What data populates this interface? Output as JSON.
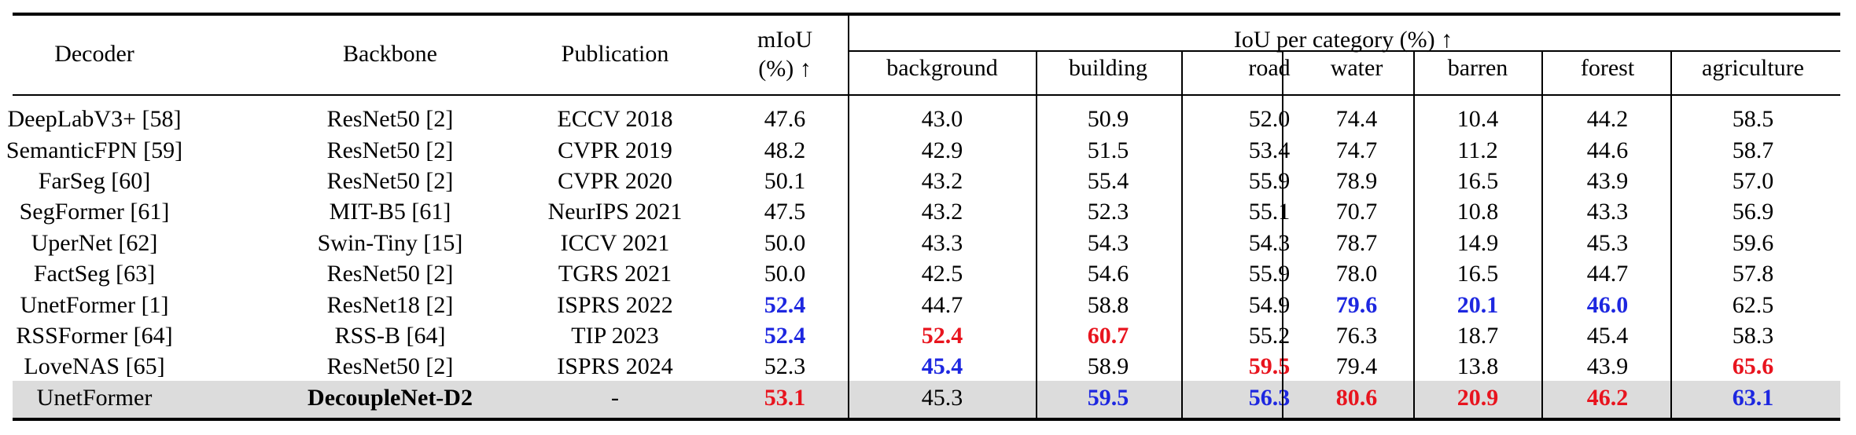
{
  "table": {
    "headers": {
      "decoder": "Decoder",
      "backbone": "Backbone",
      "publication": "Publication",
      "miou_line1": "mIoU",
      "miou_line2": "(%) ↑",
      "iou_group": "IoU per category (%) ↑",
      "categories": [
        "background",
        "building",
        "road",
        "water",
        "barren",
        "forest",
        "agriculture"
      ]
    },
    "rows": [
      {
        "decoder": "DeepLabV3+ [58]",
        "backbone": "ResNet50 [2]",
        "publication": "ECCV 2018",
        "miou": "47.6",
        "iou": [
          "43.0",
          "50.9",
          "52.0",
          "74.4",
          "10.4",
          "44.2",
          "58.5"
        ]
      },
      {
        "decoder": "SemanticFPN [59]",
        "backbone": "ResNet50 [2]",
        "publication": "CVPR 2019",
        "miou": "48.2",
        "iou": [
          "42.9",
          "51.5",
          "53.4",
          "74.7",
          "11.2",
          "44.6",
          "58.7"
        ]
      },
      {
        "decoder": "FarSeg [60]",
        "backbone": "ResNet50 [2]",
        "publication": "CVPR 2020",
        "miou": "50.1",
        "iou": [
          "43.2",
          "55.4",
          "55.9",
          "78.9",
          "16.5",
          "43.9",
          "57.0"
        ]
      },
      {
        "decoder": "SegFormer [61]",
        "backbone": "MIT-B5 [61]",
        "publication": "NeurIPS 2021",
        "miou": "47.5",
        "iou": [
          "43.2",
          "52.3",
          "55.1",
          "70.7",
          "10.8",
          "43.3",
          "56.9"
        ]
      },
      {
        "decoder": "UperNet [62]",
        "backbone": "Swin-Tiny [15]",
        "publication": "ICCV 2021",
        "miou": "50.0",
        "iou": [
          "43.3",
          "54.3",
          "54.3",
          "78.7",
          "14.9",
          "45.3",
          "59.6"
        ]
      },
      {
        "decoder": "FactSeg [63]",
        "backbone": "ResNet50 [2]",
        "publication": "TGRS 2021",
        "miou": "50.0",
        "iou": [
          "42.5",
          "54.6",
          "55.9",
          "78.0",
          "16.5",
          "44.7",
          "57.8"
        ]
      },
      {
        "decoder": "UnetFormer [1]",
        "backbone": "ResNet18 [2]",
        "publication": "ISPRS 2022",
        "miou": "52.4",
        "iou": [
          "44.7",
          "58.8",
          "54.9",
          "79.6",
          "20.1",
          "46.0",
          "62.5"
        ]
      },
      {
        "decoder": "RSSFormer [64]",
        "backbone": "RSS-B [64]",
        "publication": "TIP 2023",
        "miou": "52.4",
        "iou": [
          "52.4",
          "60.7",
          "55.2",
          "76.3",
          "18.7",
          "45.4",
          "58.3"
        ]
      },
      {
        "decoder": "LoveNAS [65]",
        "backbone": "ResNet50 [2]",
        "publication": "ISPRS 2024",
        "miou": "52.3",
        "iou": [
          "45.4",
          "58.9",
          "59.5",
          "79.4",
          "13.8",
          "43.9",
          "65.6"
        ]
      },
      {
        "decoder": "UnetFormer",
        "backbone": "DecoupleNet-D2",
        "publication": "-",
        "miou": "53.1",
        "iou": [
          "45.3",
          "59.5",
          "56.3",
          "80.6",
          "20.9",
          "46.2",
          "63.1"
        ]
      }
    ],
    "highlight_colors": {
      "best": "#e8141e",
      "second": "#1d27e0",
      "shaded_row": "#dcdcdc"
    },
    "miou_emphasis": [
      "",
      "",
      "",
      "",
      "",
      "",
      "second",
      "second",
      "",
      "best"
    ],
    "iou_emphasis": [
      [
        "",
        "",
        "",
        "",
        "",
        "",
        ""
      ],
      [
        "",
        "",
        "",
        "",
        "",
        "",
        ""
      ],
      [
        "",
        "",
        "",
        "",
        "",
        "",
        ""
      ],
      [
        "",
        "",
        "",
        "",
        "",
        "",
        ""
      ],
      [
        "",
        "",
        "",
        "",
        "",
        "",
        ""
      ],
      [
        "",
        "",
        "",
        "",
        "",
        "",
        ""
      ],
      [
        "",
        "",
        "",
        "second",
        "second",
        "second",
        ""
      ],
      [
        "best",
        "best",
        "",
        "",
        "",
        "",
        ""
      ],
      [
        "second",
        "",
        "best",
        "",
        "",
        "",
        "best"
      ],
      [
        "",
        "second",
        "second",
        "best",
        "best",
        "best",
        "second"
      ]
    ],
    "bold_backbone_row": 9
  }
}
